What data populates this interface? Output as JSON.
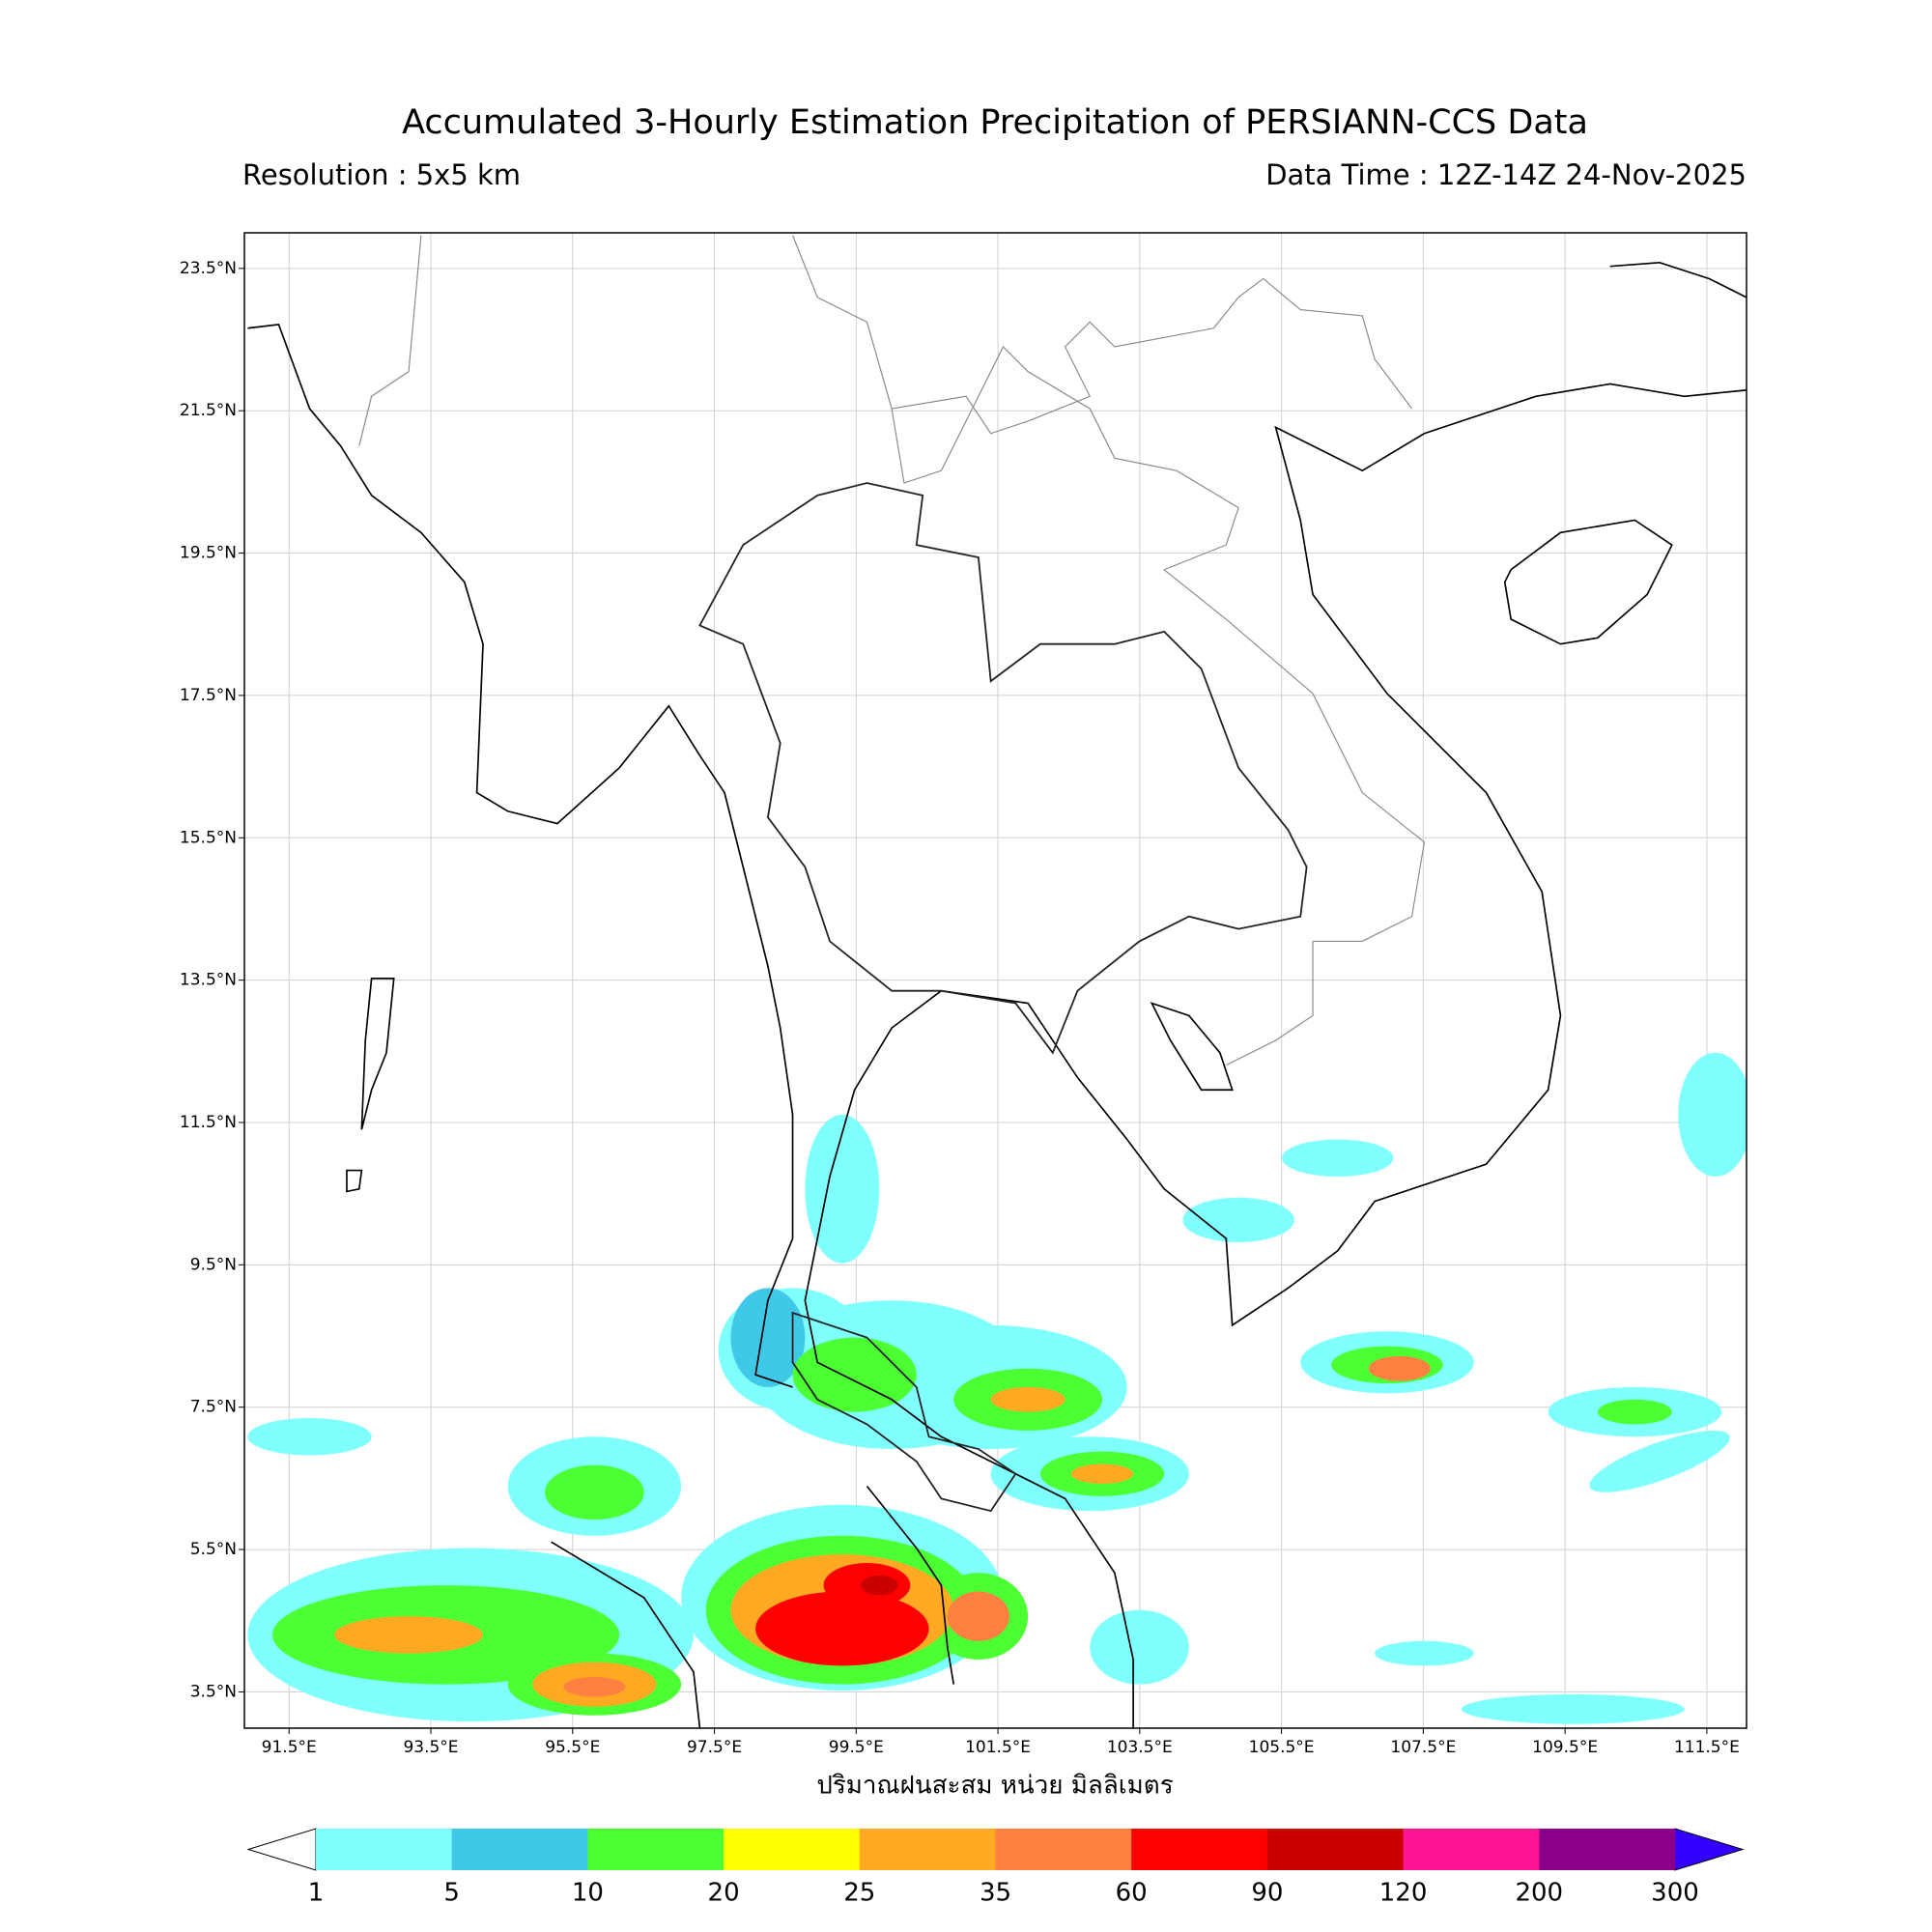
{
  "map": {
    "title": "Accumulated 3-Hourly Estimation Precipitation of PERSIANN-CCS Data",
    "resolution": "Resolution : 5x5 km",
    "data_time": "Data Time : 12Z-14Z 24-Nov-2025",
    "axis_label": "ปริมาณฝนสะสม หน่วย มิลลิเมตร",
    "lonlim": [
      90.87,
      112.06
    ],
    "latlim": [
      2.99,
      24.0
    ],
    "lon_ticks": [
      {
        "value": 91.5,
        "label": "91.5°E"
      },
      {
        "value": 93.5,
        "label": "93.5°E"
      },
      {
        "value": 95.5,
        "label": "95.5°E"
      },
      {
        "value": 97.5,
        "label": "97.5°E"
      },
      {
        "value": 99.5,
        "label": "99.5°E"
      },
      {
        "value": 101.5,
        "label": "101.5°E"
      },
      {
        "value": 103.5,
        "label": "103.5°E"
      },
      {
        "value": 105.5,
        "label": "105.5°E"
      },
      {
        "value": 107.5,
        "label": "107.5°E"
      },
      {
        "value": 109.5,
        "label": "109.5°E"
      },
      {
        "value": 111.5,
        "label": "111.5°E"
      }
    ],
    "lat_ticks": [
      {
        "value": 23.5,
        "label": "23.5°N"
      },
      {
        "value": 21.5,
        "label": "21.5°N"
      },
      {
        "value": 19.5,
        "label": "19.5°N"
      },
      {
        "value": 17.5,
        "label": "17.5°N"
      },
      {
        "value": 15.5,
        "label": "15.5°N"
      },
      {
        "value": 13.5,
        "label": "13.5°N"
      },
      {
        "value": 11.5,
        "label": "11.5°N"
      },
      {
        "value": 9.5,
        "label": "9.5°N"
      },
      {
        "value": 7.5,
        "label": "7.5°N"
      },
      {
        "value": 5.5,
        "label": "5.5°N"
      },
      {
        "value": 3.5,
        "label": "3.5°N"
      }
    ],
    "grid": true,
    "colorbar": {
      "levels": [
        1,
        5,
        10,
        20,
        25,
        35,
        60,
        90,
        120,
        200,
        300
      ],
      "colors": [
        "#80ffff",
        "#40c8e8",
        "#4cff33",
        "#ffff00",
        "#ffaa22",
        "#ff8040",
        "#ff0000",
        "#cc0000",
        "#ff1493",
        "#8b008b"
      ],
      "under_color": "#ffffff",
      "over_color": "#3300ff"
    }
  }
}
